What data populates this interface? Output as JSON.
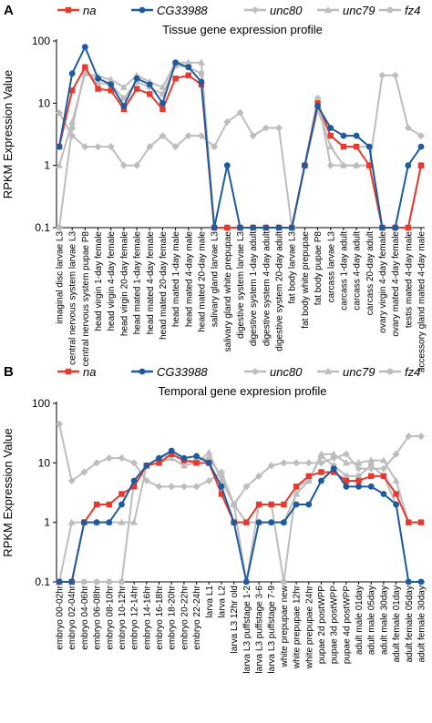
{
  "chart_data": [
    {
      "panel": "A",
      "type": "line",
      "title": "Tissue gene expression profile",
      "ylabel": "RPKM Expression Value",
      "yscale": "log",
      "ylim": [
        0.1,
        100
      ],
      "yticks": [
        "0.1",
        "1",
        "10",
        "100"
      ],
      "legend_position": "top",
      "categories": [
        "imaginal disc larvae L3",
        "central nervous system larvae L3",
        "central nervous system pupae P8",
        "head virgin 1-day female",
        "head virgin 4-day female",
        "head virgin 20-day female",
        "head mated 1-day female",
        "head mated 4-day female",
        "head mated 20-day female",
        "head mated 1-day male",
        "head mated 4-day male",
        "head mated 20-day male",
        "salivary gland larvae L3",
        "salivary gland white prepupae",
        "digestive system larvae L3",
        "digestive system 1-day adult",
        "digestive system 4-day adult",
        "digestive system 20-day adult",
        "fat body larvae L3",
        "fat body white prepupae",
        "fat body pupae P8",
        "carcass larvae L3",
        "carcass 1-day adult",
        "carcass 4-day adult",
        "carcass 20-day adult",
        "ovary virgin 4-day female",
        "ovary mated 4-day female",
        "testis mated 4-day male",
        "accessory gland mated 4-day male"
      ],
      "series": [
        {
          "name": "na",
          "color": "#e8392f",
          "marker": "square",
          "values": [
            2,
            16,
            38,
            17,
            16,
            8,
            17,
            14,
            8,
            25,
            28,
            20,
            0.1,
            0.1,
            0.1,
            0.1,
            0.1,
            0.1,
            0.1,
            1,
            10,
            3,
            2,
            2,
            1,
            0.1,
            0.1,
            0.1,
            1
          ]
        },
        {
          "name": "CG33988",
          "color": "#1d5b9e",
          "marker": "circle",
          "values": [
            2,
            30,
            80,
            25,
            20,
            9,
            25,
            20,
            10,
            45,
            38,
            22,
            0.1,
            1,
            0.1,
            0.1,
            0.1,
            0.1,
            0.1,
            1,
            9,
            4,
            3,
            3,
            2,
            0.1,
            0.1,
            1,
            2
          ]
        },
        {
          "name": "unc80",
          "color": "#bdbdbd",
          "marker": "diamond",
          "values": [
            7,
            3,
            2,
            2,
            2,
            1,
            1,
            2,
            3,
            2,
            3,
            3,
            2,
            5,
            7,
            3,
            4,
            4,
            0.1,
            1,
            12,
            1,
            1,
            1,
            1,
            28,
            28,
            4,
            3
          ]
        },
        {
          "name": "unc79",
          "color": "#bdbdbd",
          "marker": "triangle",
          "values": [
            1,
            5,
            30,
            27,
            24,
            18,
            28,
            22,
            18,
            45,
            45,
            45,
            0.1,
            0.1,
            0.1,
            0.1,
            0.1,
            0.1,
            0.1,
            1,
            8,
            2,
            1,
            1,
            1,
            0.1,
            0.1,
            0.1,
            1
          ]
        },
        {
          "name": "fz4",
          "color": "#bdbdbd",
          "marker": "circle",
          "values": [
            0.1,
            4,
            35,
            21,
            20,
            12,
            22,
            18,
            14,
            40,
            38,
            30,
            0.1,
            0.1,
            0.1,
            0.1,
            0.1,
            0.1,
            0.1,
            1,
            8,
            3,
            2,
            2,
            2,
            0.1,
            0.1,
            0.1,
            1
          ]
        }
      ]
    },
    {
      "panel": "B",
      "type": "line",
      "title": "Temporal gene expresion profile",
      "ylabel": "RPKM Expression Value",
      "yscale": "log",
      "ylim": [
        0.1,
        100
      ],
      "yticks": [
        "0.1",
        "1",
        "10",
        "100"
      ],
      "legend_position": "top",
      "categories": [
        "embryo 00-02hr",
        "embryo 02-04hr",
        "embryo 04-06hr",
        "embryo 06-08hr",
        "embryo 08-10hr",
        "embryo 10-12hr",
        "embryo 12-14hr",
        "embryo 14-16hr",
        "embryo 16-18hr",
        "embryo 18-20hr",
        "embryo 20-22hr",
        "embryo 22-24hr",
        "larva L1",
        "larva L2",
        "larva L3 12hr old",
        "larva L3 puffstage 1-2",
        "larva L3 puffstage 3-6",
        "larva L3 puffstage 7-9",
        "white prepupae new",
        "white prepupae 12hr",
        "white prepupae 24hr",
        "pupae 2d postWPP",
        "pupae 3d postWPP",
        "pupae 4d postWPP",
        "adult male 01day",
        "adult male 05day",
        "adult male 30day",
        "adult female 01day",
        "adult female 05day",
        "adult female 30day"
      ],
      "series": [
        {
          "name": "na",
          "color": "#e8392f",
          "marker": "square",
          "values": [
            0.1,
            0.1,
            1,
            2,
            2,
            3,
            4,
            9,
            10,
            14,
            11,
            10,
            10,
            3,
            1,
            1,
            2,
            2,
            2,
            4,
            6,
            7,
            7,
            5,
            5,
            6,
            6,
            3,
            1,
            1
          ]
        },
        {
          "name": "CG33988",
          "color": "#1d5b9e",
          "marker": "circle",
          "values": [
            0.1,
            0.1,
            1,
            1,
            1,
            2,
            5,
            9,
            12,
            16,
            12,
            13,
            10,
            4,
            1,
            0.1,
            1,
            1,
            1,
            2,
            2,
            5,
            8,
            4,
            4,
            4,
            3,
            2,
            0.1,
            0.1
          ]
        },
        {
          "name": "unc80",
          "color": "#bdbdbd",
          "marker": "diamond",
          "values": [
            45,
            5,
            7,
            10,
            12,
            12,
            10,
            5,
            4,
            4,
            4,
            4,
            5,
            7,
            2,
            4,
            6,
            9,
            10,
            10,
            10,
            10,
            12,
            14,
            8,
            8,
            8,
            14,
            28,
            28
          ]
        },
        {
          "name": "unc79",
          "color": "#bdbdbd",
          "marker": "triangle",
          "values": [
            0.1,
            1,
            1,
            1,
            1,
            1,
            1,
            9,
            10,
            12,
            9,
            10,
            15,
            5,
            2,
            1,
            1,
            1,
            1,
            3,
            5,
            14,
            14,
            10,
            10,
            11,
            11,
            5,
            1,
            1
          ]
        },
        {
          "name": "fz4",
          "color": "#bdbdbd",
          "marker": "circle",
          "values": [
            0.1,
            0.1,
            0.1,
            0.1,
            0.1,
            0.1,
            5,
            9,
            12,
            14,
            11,
            11,
            12,
            6,
            2,
            0.1,
            2,
            2,
            0.1,
            4,
            5,
            13,
            9,
            6,
            6,
            9,
            6,
            2,
            0.1,
            0.1
          ]
        }
      ]
    }
  ]
}
